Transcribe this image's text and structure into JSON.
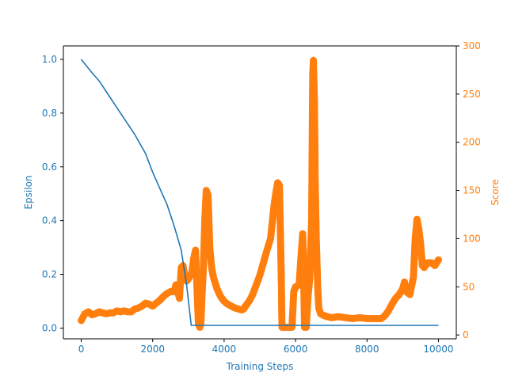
{
  "chart_data": {
    "type": "line",
    "title": "",
    "xlabel": "Training Steps",
    "ylabel_left": "Epsilon",
    "ylabel_right": "Score",
    "xlim": [
      -500,
      10500
    ],
    "ylim_left": [
      -0.04,
      1.05
    ],
    "ylim_right": [
      -4,
      300
    ],
    "x_ticks": [
      0,
      2000,
      4000,
      6000,
      8000,
      10000
    ],
    "x_tick_labels": [
      "0",
      "2000",
      "4000",
      "6000",
      "8000",
      "10000"
    ],
    "left_ticks": [
      0.0,
      0.2,
      0.4,
      0.6,
      0.8,
      1.0
    ],
    "left_tick_labels": [
      "0.0",
      "0.2",
      "0.4",
      "0.6",
      "0.8",
      "1.0"
    ],
    "right_ticks": [
      0,
      50,
      100,
      150,
      200,
      250,
      300
    ],
    "right_tick_labels": [
      "0",
      "50",
      "100",
      "150",
      "200",
      "250",
      "300"
    ],
    "grid": false,
    "legend": "none",
    "colors": {
      "epsilon": "#1f77b4",
      "score": "#ff7f0e",
      "axis": "#000000"
    },
    "series": [
      {
        "axis": "left",
        "style": "line",
        "points": [
          [
            0,
            1.0
          ],
          [
            300,
            0.95
          ],
          [
            500,
            0.92
          ],
          [
            800,
            0.86
          ],
          [
            1000,
            0.82
          ],
          [
            1300,
            0.76
          ],
          [
            1500,
            0.72
          ],
          [
            1800,
            0.65
          ],
          [
            2000,
            0.58
          ],
          [
            2200,
            0.52
          ],
          [
            2400,
            0.46
          ],
          [
            2600,
            0.38
          ],
          [
            2800,
            0.29
          ],
          [
            2950,
            0.16
          ],
          [
            3080,
            0.01
          ],
          [
            3500,
            0.01
          ],
          [
            5000,
            0.01
          ],
          [
            7000,
            0.01
          ],
          [
            9000,
            0.01
          ],
          [
            10000,
            0.01
          ]
        ]
      },
      {
        "axis": "right",
        "style": "markers",
        "points": [
          [
            0,
            15
          ],
          [
            100,
            22
          ],
          [
            200,
            24
          ],
          [
            300,
            21
          ],
          [
            400,
            22
          ],
          [
            500,
            24
          ],
          [
            600,
            23
          ],
          [
            700,
            22
          ],
          [
            800,
            23
          ],
          [
            900,
            23
          ],
          [
            1000,
            25
          ],
          [
            1100,
            24
          ],
          [
            1200,
            25
          ],
          [
            1300,
            24
          ],
          [
            1400,
            24
          ],
          [
            1500,
            27
          ],
          [
            1600,
            28
          ],
          [
            1700,
            30
          ],
          [
            1800,
            33
          ],
          [
            1900,
            32
          ],
          [
            2000,
            30
          ],
          [
            2100,
            33
          ],
          [
            2200,
            36
          ],
          [
            2300,
            40
          ],
          [
            2400,
            43
          ],
          [
            2500,
            45
          ],
          [
            2600,
            45
          ],
          [
            2650,
            52
          ],
          [
            2700,
            45
          ],
          [
            2750,
            38
          ],
          [
            2800,
            70
          ],
          [
            2850,
            72
          ],
          [
            2900,
            60
          ],
          [
            2950,
            56
          ],
          [
            3000,
            58
          ],
          [
            3100,
            65
          ],
          [
            3150,
            80
          ],
          [
            3200,
            88
          ],
          [
            3230,
            60
          ],
          [
            3250,
            40
          ],
          [
            3280,
            12
          ],
          [
            3320,
            8
          ],
          [
            3350,
            12
          ],
          [
            3380,
            40
          ],
          [
            3420,
            70
          ],
          [
            3460,
            120
          ],
          [
            3500,
            150
          ],
          [
            3550,
            145
          ],
          [
            3600,
            90
          ],
          [
            3650,
            70
          ],
          [
            3700,
            60
          ],
          [
            3800,
            48
          ],
          [
            3900,
            40
          ],
          [
            4000,
            35
          ],
          [
            4100,
            32
          ],
          [
            4200,
            30
          ],
          [
            4300,
            28
          ],
          [
            4400,
            27
          ],
          [
            4500,
            26
          ],
          [
            4550,
            27
          ],
          [
            4600,
            30
          ],
          [
            4700,
            35
          ],
          [
            4800,
            42
          ],
          [
            4900,
            52
          ],
          [
            5000,
            62
          ],
          [
            5100,
            75
          ],
          [
            5200,
            88
          ],
          [
            5300,
            100
          ],
          [
            5400,
            135
          ],
          [
            5450,
            148
          ],
          [
            5500,
            158
          ],
          [
            5550,
            155
          ],
          [
            5600,
            60
          ],
          [
            5620,
            8
          ],
          [
            5700,
            8
          ],
          [
            5800,
            8
          ],
          [
            5900,
            8
          ],
          [
            5950,
            45
          ],
          [
            6000,
            50
          ],
          [
            6100,
            52
          ],
          [
            6150,
            80
          ],
          [
            6200,
            105
          ],
          [
            6220,
            80
          ],
          [
            6250,
            8
          ],
          [
            6300,
            8
          ],
          [
            6350,
            40
          ],
          [
            6400,
            60
          ],
          [
            6450,
            120
          ],
          [
            6480,
            270
          ],
          [
            6500,
            285
          ],
          [
            6530,
            240
          ],
          [
            6550,
            160
          ],
          [
            6580,
            100
          ],
          [
            6620,
            50
          ],
          [
            6650,
            28
          ],
          [
            6700,
            22
          ],
          [
            6800,
            20
          ],
          [
            7000,
            18
          ],
          [
            7200,
            19
          ],
          [
            7400,
            18
          ],
          [
            7600,
            17
          ],
          [
            7800,
            18
          ],
          [
            8000,
            17
          ],
          [
            8200,
            17
          ],
          [
            8400,
            17
          ],
          [
            8500,
            20
          ],
          [
            8600,
            25
          ],
          [
            8700,
            32
          ],
          [
            8800,
            38
          ],
          [
            8900,
            42
          ],
          [
            9000,
            48
          ],
          [
            9050,
            55
          ],
          [
            9100,
            45
          ],
          [
            9200,
            42
          ],
          [
            9300,
            60
          ],
          [
            9350,
            100
          ],
          [
            9400,
            120
          ],
          [
            9450,
            110
          ],
          [
            9500,
            95
          ],
          [
            9550,
            72
          ],
          [
            9600,
            70
          ],
          [
            9700,
            75
          ],
          [
            9800,
            75
          ],
          [
            9900,
            72
          ],
          [
            10000,
            78
          ]
        ]
      }
    ]
  }
}
